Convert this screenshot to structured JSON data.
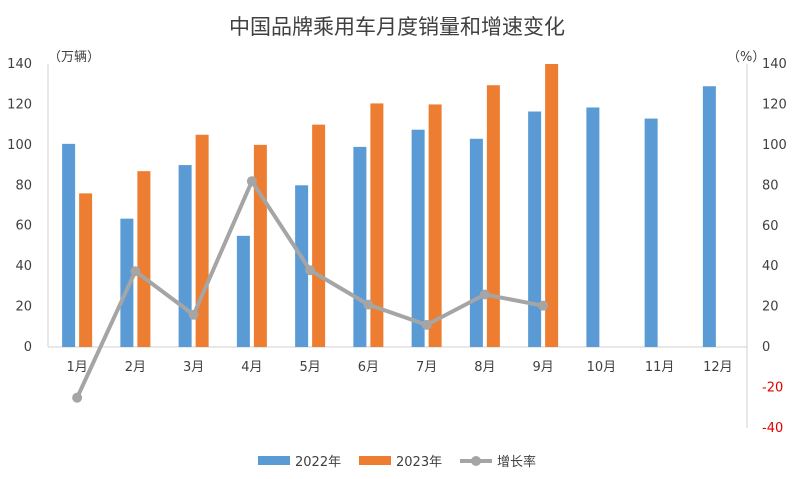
{
  "chart_data": {
    "type": "bar",
    "title": "中国品牌乘用车月度销量和增速变化",
    "left_unit": "（万辆）",
    "right_unit": "（%）",
    "categories": [
      "1月",
      "2月",
      "3月",
      "4月",
      "5月",
      "6月",
      "7月",
      "8月",
      "9月",
      "10月",
      "11月",
      "12月"
    ],
    "ylim_left": [
      0,
      140
    ],
    "ylim_right": [
      -40,
      140
    ],
    "left_ticks": [
      0,
      20,
      40,
      60,
      80,
      100,
      120,
      140
    ],
    "right_ticks": [
      -40,
      -20,
      0,
      20,
      40,
      60,
      80,
      100,
      120,
      140
    ],
    "series": [
      {
        "name": "2022年",
        "kind": "bar",
        "axis": "left",
        "color": "#5b9bd5",
        "values": [
          100.5,
          63.5,
          90,
          55,
          80,
          99,
          107.5,
          103,
          116.5,
          118.5,
          113,
          129
        ]
      },
      {
        "name": "2023年",
        "kind": "bar",
        "axis": "left",
        "color": "#ed7d31",
        "values": [
          76,
          87,
          105,
          100,
          110,
          120.5,
          120,
          129.5,
          140,
          null,
          null,
          null
        ]
      },
      {
        "name": "增长率",
        "kind": "line",
        "axis": "right",
        "color": "#a5a5a5",
        "values": [
          -25,
          37.5,
          16,
          82,
          38,
          21,
          11,
          26,
          20.5,
          null,
          null,
          null
        ]
      }
    ],
    "grid": false,
    "legend_position": "bottom"
  }
}
